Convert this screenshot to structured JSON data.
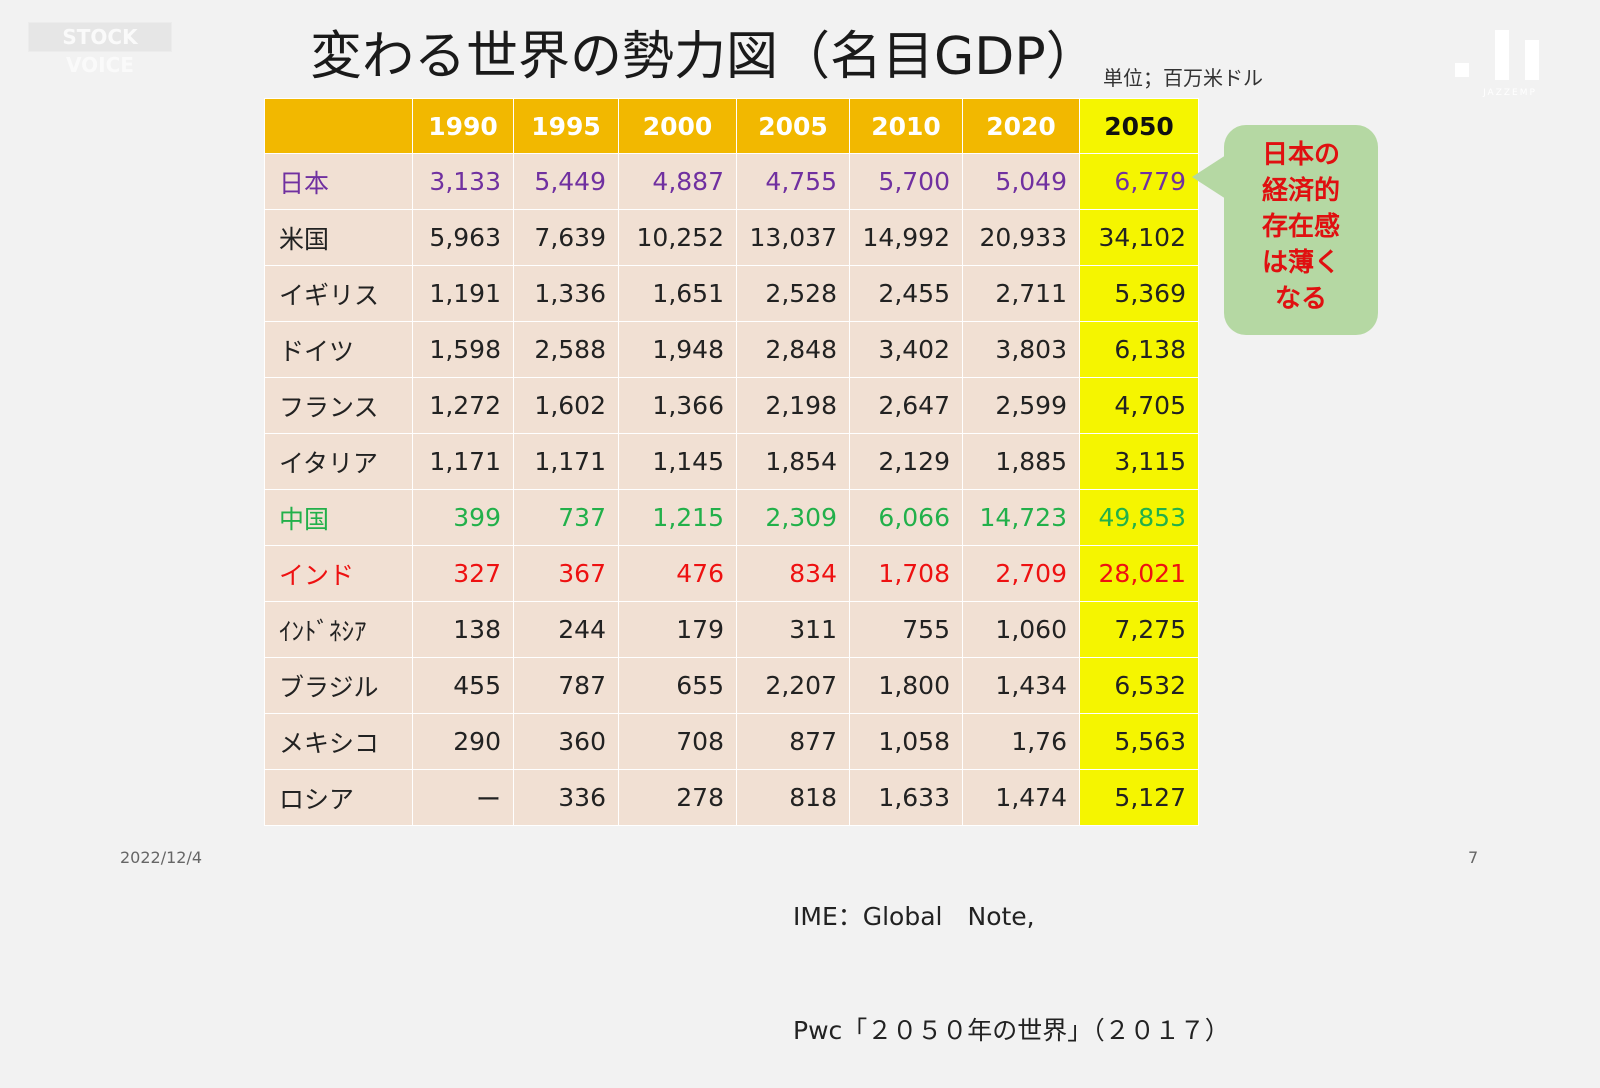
{
  "watermark": "STOCK VOICE",
  "logo_text": "JAZZEMP",
  "title": "変わる世界の勢力図（名目GDP）",
  "unit": "単位；百万米ドル",
  "table": {
    "headers": [
      "",
      "1990",
      "1995",
      "2000",
      "2005",
      "2010",
      "2020",
      "2050"
    ],
    "rows": [
      {
        "country": "日本",
        "values": [
          "3,133",
          "5,449",
          "4,887",
          "4,755",
          "5,700",
          "5,049",
          "6,779"
        ],
        "color": "#7030a0"
      },
      {
        "country": "米国",
        "values": [
          "5,963",
          "7,639",
          "10,252",
          "13,037",
          "14,992",
          "20,933",
          "34,102"
        ],
        "color": "#222222"
      },
      {
        "country": "イギリス",
        "values": [
          "1,191",
          "1,336",
          "1,651",
          "2,528",
          "2,455",
          "2,711",
          "5,369"
        ],
        "color": "#222222"
      },
      {
        "country": "ドイツ",
        "values": [
          "1,598",
          "2,588",
          "1,948",
          "2,848",
          "3,402",
          "3,803",
          "6,138"
        ],
        "color": "#222222"
      },
      {
        "country": "フランス",
        "values": [
          "1,272",
          "1,602",
          "1,366",
          "2,198",
          "2,647",
          "2,599",
          "4,705"
        ],
        "color": "#222222"
      },
      {
        "country": "イタリア",
        "values": [
          "1,171",
          "1,171",
          "1,145",
          "1,854",
          "2,129",
          "1,885",
          "3,115"
        ],
        "color": "#222222"
      },
      {
        "country": "中国",
        "values": [
          "399",
          "737",
          "1,215",
          "2,309",
          "6,066",
          "14,723",
          "49,853"
        ],
        "color": "#22b04a"
      },
      {
        "country": "インド",
        "values": [
          "327",
          "367",
          "476",
          "834",
          "1,708",
          "2,709",
          "28,021"
        ],
        "color": "#ee1111"
      },
      {
        "country": "ｲﾝﾄﾞﾈｼｱ",
        "values": [
          "138",
          "244",
          "179",
          "311",
          "755",
          "1,060",
          "7,275"
        ],
        "color": "#222222"
      },
      {
        "country": "ブラジル",
        "values": [
          "455",
          "787",
          "655",
          "2,207",
          "1,800",
          "1,434",
          "6,532"
        ],
        "color": "#222222"
      },
      {
        "country": "メキシコ",
        "values": [
          "290",
          "360",
          "708",
          "877",
          "1,058",
          "1,76",
          "5,563"
        ],
        "color": "#222222"
      },
      {
        "country": "ロシア",
        "values": [
          "ー",
          "336",
          "278",
          "818",
          "1,633",
          "1,474",
          "5,127"
        ],
        "color": "#222222"
      }
    ]
  },
  "callout": {
    "lines": [
      "日本の",
      "経済的",
      "存在感",
      "は薄く",
      "なる"
    ]
  },
  "date": "2022/12/4",
  "page_number": "7",
  "source": {
    "line1": "IME：Global　Note,",
    "line2": "Pwc「２０５０年の世界」（２０１７）"
  },
  "colors": {
    "header": "#f2b800",
    "highlight_2050": "#f5f500",
    "cell": "#f1e0d3",
    "callout_bg": "#b5d8a3",
    "callout_text": "#e01010"
  }
}
